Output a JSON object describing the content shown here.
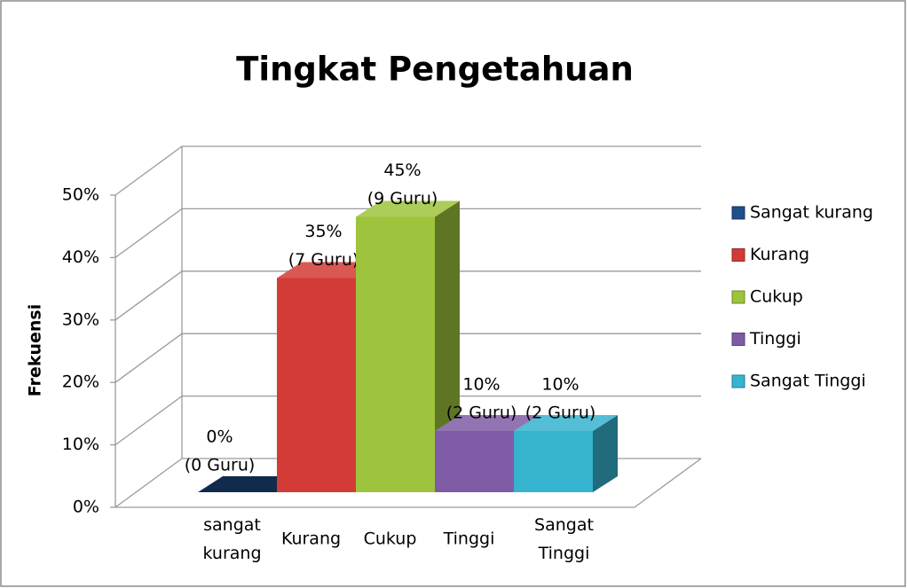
{
  "chart_data": {
    "type": "bar3d",
    "title": "Tingkat Pengetahuan",
    "y_label": "Frekuensi",
    "categories": [
      "sangat kurang",
      "Kurang",
      "Cukup",
      "Tinggi",
      "Sangat Tinggi"
    ],
    "values": [
      0,
      35,
      45,
      10,
      10
    ],
    "value_labels": [
      "0%",
      "35%",
      "45%",
      "10%",
      "10%"
    ],
    "count_labels": [
      "(0 Guru)",
      "(7 Guru)",
      "(9 Guru)",
      "(2 Guru)",
      "(2 Guru)"
    ],
    "colors": [
      "#1f4e8c",
      "#d23b36",
      "#9dc43c",
      "#7f5ba6",
      "#35b3cf"
    ],
    "legend": [
      "Sangat kurang",
      "Kurang",
      "Cukup",
      "Tinggi",
      "Sangat Tinggi"
    ],
    "legend_position": "right",
    "ylim": [
      0,
      50
    ],
    "yticks": [
      {
        "value": 0,
        "label": "0%"
      },
      {
        "value": 10,
        "label": "10%"
      },
      {
        "value": 20,
        "label": "20%"
      },
      {
        "value": 30,
        "label": "30%"
      },
      {
        "value": 40,
        "label": "40%"
      },
      {
        "value": 50,
        "label": "50%"
      }
    ],
    "grid": true
  }
}
